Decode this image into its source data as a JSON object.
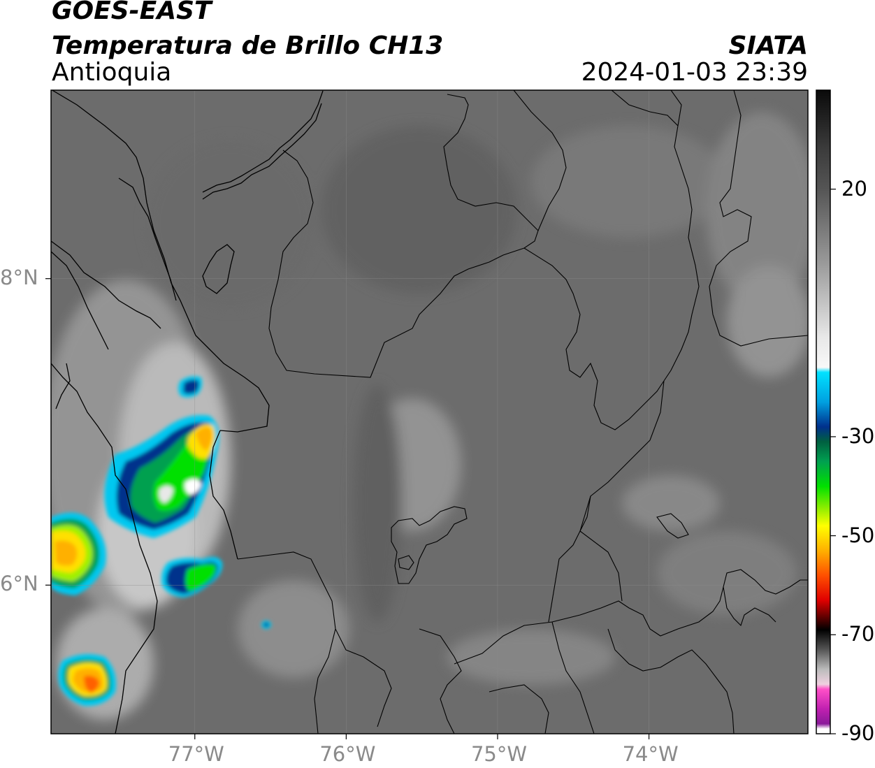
{
  "header": {
    "satellite": "GOES-EAST",
    "product": "Temperatura de Brillo CH13",
    "region": "Antioquia",
    "agency": "SIATA",
    "datetime": "2024-01-03 23:39"
  },
  "map": {
    "lon_range": [
      -77.95,
      -72.95
    ],
    "lat_range": [
      5.03,
      9.23
    ],
    "lon_ticks": [
      {
        "value": -77,
        "label": "77°W"
      },
      {
        "value": -76,
        "label": "76°W"
      },
      {
        "value": -75,
        "label": "75°W"
      },
      {
        "value": -74,
        "label": "74°W"
      }
    ],
    "lat_ticks": [
      {
        "value": 8,
        "label": "8°N"
      },
      {
        "value": 6,
        "label": "6°N"
      }
    ],
    "background_color": "#6c6c6c",
    "border_color": "#000000",
    "grid_color": "#8c8c8c",
    "convective_cells": [
      {
        "lon": -77.0,
        "lat": 6.83,
        "peak_tb": -50
      },
      {
        "lon": -77.2,
        "lat": 6.55,
        "peak_tb": -40
      },
      {
        "lon": -77.78,
        "lat": 6.25,
        "peak_tb": -50
      },
      {
        "lon": -77.64,
        "lat": 5.36,
        "peak_tb": -55
      },
      {
        "lon": -77.13,
        "lat": 5.98,
        "peak_tb": -40
      },
      {
        "lon": -77.06,
        "lat": 7.32,
        "peak_tb": -25
      }
    ]
  },
  "colorbar": {
    "range": [
      -90,
      40
    ],
    "ticks": [
      {
        "value": 20,
        "label": "20"
      },
      {
        "value": -30,
        "label": "-30"
      },
      {
        "value": -50,
        "label": "-50"
      },
      {
        "value": -70,
        "label": "-70"
      },
      {
        "value": -90,
        "label": "-90"
      }
    ],
    "stops": [
      {
        "t": 40,
        "color": "#0a0a0a"
      },
      {
        "t": 28,
        "color": "#3c3c3c"
      },
      {
        "t": 20,
        "color": "#555555"
      },
      {
        "t": 5,
        "color": "#9a9a9a"
      },
      {
        "t": -10,
        "color": "#e8e8e8"
      },
      {
        "t": -16,
        "color": "#f8f8f8"
      },
      {
        "t": -17,
        "color": "#00e1ff"
      },
      {
        "t": -23,
        "color": "#00a0e0"
      },
      {
        "t": -28,
        "color": "#00308c"
      },
      {
        "t": -31,
        "color": "#006040"
      },
      {
        "t": -35,
        "color": "#00a050"
      },
      {
        "t": -40,
        "color": "#00e000"
      },
      {
        "t": -45,
        "color": "#a0f000"
      },
      {
        "t": -48,
        "color": "#ffff00"
      },
      {
        "t": -53,
        "color": "#ffb000"
      },
      {
        "t": -58,
        "color": "#ff5000"
      },
      {
        "t": -63,
        "color": "#e00000"
      },
      {
        "t": -66,
        "color": "#700000"
      },
      {
        "t": -69,
        "color": "#000000"
      },
      {
        "t": -73,
        "color": "#555555"
      },
      {
        "t": -77,
        "color": "#bbbbbb"
      },
      {
        "t": -80,
        "color": "#f0d0e0"
      },
      {
        "t": -81,
        "color": "#ff50c8"
      },
      {
        "t": -85,
        "color": "#c020b0"
      },
      {
        "t": -88,
        "color": "#8a1a9a"
      },
      {
        "t": -89,
        "color": "#ffffff"
      }
    ]
  }
}
